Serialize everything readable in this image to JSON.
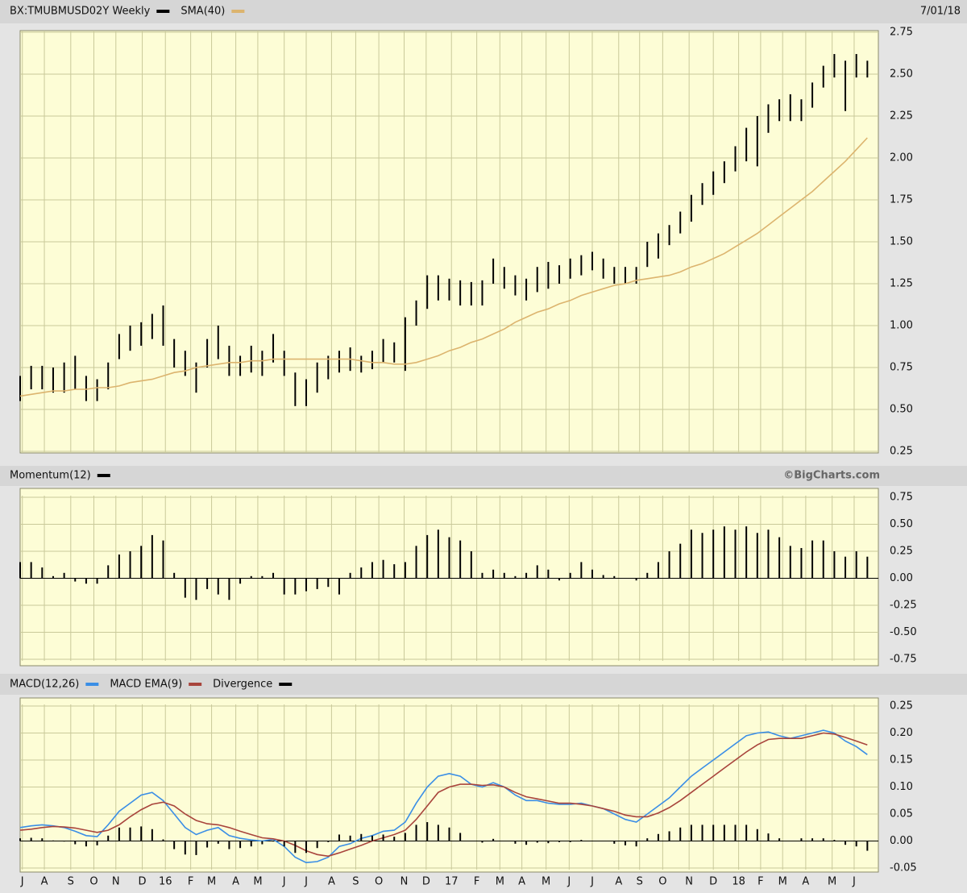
{
  "chart_data": [
    {
      "type": "ohlc",
      "date": "7/01/18",
      "xlim": [
        0,
        78
      ],
      "ylim": [
        0.25,
        2.75
      ],
      "yticks": [
        0.25,
        {
          "value": 0.5,
          "label": "0.50"
        },
        0.75,
        {
          "value": 1,
          "label": "1.00"
        },
        1.25,
        {
          "value": 1.5,
          "label": "1.50"
        },
        1.75,
        {
          "value": 2,
          "label": "2.00"
        },
        2.25,
        {
          "value": 2.5,
          "label": "2.50"
        },
        2.75
      ],
      "grid": true,
      "series": [
        {
          "name": "BX:TMUBMUSD02Y Weekly",
          "color": "#000000",
          "high": [
            0.7,
            0.76,
            0.76,
            0.75,
            0.78,
            0.82,
            0.7,
            0.68,
            0.78,
            0.95,
            1.0,
            1.02,
            1.07,
            1.12,
            0.92,
            0.85,
            0.78,
            0.92,
            1.0,
            0.88,
            0.82,
            0.88,
            0.85,
            0.95,
            0.85,
            0.72,
            0.68,
            0.78,
            0.82,
            0.85,
            0.87,
            0.82,
            0.85,
            0.92,
            0.9,
            1.05,
            1.15,
            1.3,
            1.3,
            1.28,
            1.27,
            1.26,
            1.27,
            1.4,
            1.35,
            1.3,
            1.28,
            1.35,
            1.38,
            1.36,
            1.4,
            1.42,
            1.44,
            1.4,
            1.35,
            1.35,
            1.35,
            1.5,
            1.55,
            1.6,
            1.68,
            1.78,
            1.85,
            1.92,
            1.98,
            2.07,
            2.18,
            2.25,
            2.32,
            2.35,
            2.38,
            2.35,
            2.45,
            2.55,
            2.62,
            2.58,
            2.62,
            2.58
          ],
          "low": [
            0.55,
            0.62,
            0.62,
            0.6,
            0.6,
            0.62,
            0.55,
            0.55,
            0.62,
            0.8,
            0.85,
            0.88,
            0.92,
            0.88,
            0.75,
            0.7,
            0.6,
            0.75,
            0.8,
            0.7,
            0.7,
            0.72,
            0.7,
            0.78,
            0.7,
            0.52,
            0.52,
            0.6,
            0.68,
            0.72,
            0.73,
            0.72,
            0.74,
            0.78,
            0.78,
            0.73,
            1.0,
            1.1,
            1.15,
            1.15,
            1.12,
            1.12,
            1.12,
            1.25,
            1.22,
            1.18,
            1.15,
            1.2,
            1.22,
            1.25,
            1.28,
            1.3,
            1.33,
            1.28,
            1.25,
            1.25,
            1.25,
            1.35,
            1.4,
            1.48,
            1.55,
            1.62,
            1.72,
            1.78,
            1.85,
            1.92,
            1.98,
            1.95,
            2.15,
            2.22,
            2.22,
            2.22,
            2.3,
            2.42,
            2.48,
            2.28,
            2.48,
            2.48
          ]
        },
        {
          "name": "SMA(40)",
          "color": "#dcb46e",
          "values": [
            0.58,
            0.59,
            0.6,
            0.61,
            0.61,
            0.62,
            0.62,
            0.63,
            0.63,
            0.64,
            0.66,
            0.67,
            0.68,
            0.7,
            0.72,
            0.73,
            0.75,
            0.76,
            0.77,
            0.78,
            0.78,
            0.79,
            0.79,
            0.8,
            0.8,
            0.8,
            0.8,
            0.8,
            0.8,
            0.8,
            0.8,
            0.79,
            0.78,
            0.78,
            0.77,
            0.77,
            0.78,
            0.8,
            0.82,
            0.85,
            0.87,
            0.9,
            0.92,
            0.95,
            0.98,
            1.02,
            1.05,
            1.08,
            1.1,
            1.13,
            1.15,
            1.18,
            1.2,
            1.22,
            1.24,
            1.25,
            1.27,
            1.28,
            1.29,
            1.3,
            1.32,
            1.35,
            1.37,
            1.4,
            1.43,
            1.47,
            1.51,
            1.55,
            1.6,
            1.65,
            1.7,
            1.75,
            1.8,
            1.86,
            1.92,
            1.98,
            2.05,
            2.12
          ]
        }
      ]
    },
    {
      "type": "bar",
      "credit": "©BigCharts.com",
      "xlim": [
        0,
        78
      ],
      "ylim": [
        -0.75,
        0.75
      ],
      "yticks": [
        -0.75,
        {
          "value": -0.5,
          "label": "-0.50"
        },
        -0.25,
        {
          "value": 0,
          "label": "0.00"
        },
        0.25,
        {
          "value": 0.5,
          "label": "0.50"
        },
        0.75
      ],
      "grid": true,
      "series": [
        {
          "name": "Momentum(12)",
          "color": "#000000",
          "values": [
            0.15,
            0.15,
            0.1,
            0.02,
            0.05,
            -0.03,
            -0.05,
            -0.05,
            0.12,
            0.22,
            0.25,
            0.3,
            0.4,
            0.35,
            0.05,
            -0.18,
            -0.2,
            -0.1,
            -0.15,
            -0.2,
            -0.05,
            0.02,
            0.02,
            0.05,
            -0.15,
            -0.15,
            -0.12,
            -0.1,
            -0.08,
            -0.15,
            0.05,
            0.1,
            0.15,
            0.17,
            0.13,
            0.15,
            0.3,
            0.4,
            0.45,
            0.38,
            0.35,
            0.25,
            0.05,
            0.08,
            0.05,
            0.02,
            0.05,
            0.12,
            0.08,
            -0.02,
            0.05,
            0.15,
            0.08,
            0.03,
            0.02,
            0.0,
            -0.02,
            0.05,
            0.15,
            0.25,
            0.32,
            0.45,
            0.42,
            0.45,
            0.48,
            0.45,
            0.48,
            0.42,
            0.45,
            0.38,
            0.3,
            0.28,
            0.35,
            0.35,
            0.25,
            0.2,
            0.25,
            0.2
          ]
        }
      ]
    },
    {
      "type": "line",
      "xlim": [
        0,
        78
      ],
      "ylim": [
        -0.05,
        0.25
      ],
      "yticks": [
        -0.05,
        {
          "value": 0,
          "label": "0.00"
        },
        0.05,
        {
          "value": 0.1,
          "label": "0.10"
        },
        0.15,
        {
          "value": 0.2,
          "label": "0.20"
        },
        0.25
      ],
      "xticks": [
        {
          "value": 0.2,
          "label": "J"
        },
        {
          "value": 2.2,
          "label": "A"
        },
        {
          "value": 4.6,
          "label": "S"
        },
        {
          "value": 6.7,
          "label": "O"
        },
        {
          "value": 8.7,
          "label": "N"
        },
        {
          "value": 11.1,
          "label": "D"
        },
        {
          "value": 13.2,
          "label": "16"
        },
        {
          "value": 15.5,
          "label": "F"
        },
        {
          "value": 17.4,
          "label": "M"
        },
        {
          "value": 19.6,
          "label": "A"
        },
        {
          "value": 21.6,
          "label": "M"
        },
        {
          "value": 24.0,
          "label": "J"
        },
        {
          "value": 26.0,
          "label": "J"
        },
        {
          "value": 28.3,
          "label": "A"
        },
        {
          "value": 30.5,
          "label": "S"
        },
        {
          "value": 32.6,
          "label": "O"
        },
        {
          "value": 34.9,
          "label": "N"
        },
        {
          "value": 36.9,
          "label": "D"
        },
        {
          "value": 39.2,
          "label": "17"
        },
        {
          "value": 41.5,
          "label": "F"
        },
        {
          "value": 43.6,
          "label": "M"
        },
        {
          "value": 45.6,
          "label": "A"
        },
        {
          "value": 47.8,
          "label": "M"
        },
        {
          "value": 49.9,
          "label": "J"
        },
        {
          "value": 52.0,
          "label": "J"
        },
        {
          "value": 54.4,
          "label": "A"
        },
        {
          "value": 56.3,
          "label": "S"
        },
        {
          "value": 58.4,
          "label": "O"
        },
        {
          "value": 60.8,
          "label": "N"
        },
        {
          "value": 63.0,
          "label": "D"
        },
        {
          "value": 65.3,
          "label": "18"
        },
        {
          "value": 67.3,
          "label": "F"
        },
        {
          "value": 69.3,
          "label": "M"
        },
        {
          "value": 71.4,
          "label": "A"
        },
        {
          "value": 73.8,
          "label": "M"
        },
        {
          "value": 75.8,
          "label": "J"
        }
      ],
      "grid": true,
      "series": [
        {
          "name": "MACD(12,26)",
          "color": "#3a8ee6",
          "values": [
            0.025,
            0.028,
            0.03,
            0.028,
            0.025,
            0.018,
            0.01,
            0.008,
            0.03,
            0.055,
            0.07,
            0.085,
            0.09,
            0.075,
            0.05,
            0.025,
            0.012,
            0.02,
            0.025,
            0.01,
            0.005,
            0.002,
            0.0,
            0.003,
            -0.01,
            -0.03,
            -0.04,
            -0.038,
            -0.03,
            -0.01,
            -0.005,
            0.005,
            0.01,
            0.018,
            0.02,
            0.035,
            0.07,
            0.1,
            0.12,
            0.125,
            0.12,
            0.105,
            0.1,
            0.108,
            0.1,
            0.085,
            0.075,
            0.075,
            0.07,
            0.068,
            0.068,
            0.07,
            0.065,
            0.06,
            0.05,
            0.04,
            0.035,
            0.05,
            0.065,
            0.08,
            0.1,
            0.12,
            0.135,
            0.15,
            0.165,
            0.18,
            0.195,
            0.2,
            0.202,
            0.195,
            0.19,
            0.195,
            0.2,
            0.205,
            0.2,
            0.185,
            0.175,
            0.16
          ]
        },
        {
          "name": "MACD EMA(9)",
          "color": "#a8443c",
          "values": [
            0.02,
            0.022,
            0.025,
            0.027,
            0.026,
            0.024,
            0.02,
            0.016,
            0.02,
            0.03,
            0.045,
            0.058,
            0.068,
            0.072,
            0.065,
            0.05,
            0.038,
            0.032,
            0.03,
            0.025,
            0.018,
            0.012,
            0.006,
            0.004,
            0.0,
            -0.008,
            -0.018,
            -0.025,
            -0.028,
            -0.022,
            -0.015,
            -0.008,
            0.0,
            0.006,
            0.012,
            0.02,
            0.04,
            0.065,
            0.09,
            0.1,
            0.105,
            0.105,
            0.103,
            0.104,
            0.1,
            0.09,
            0.082,
            0.078,
            0.074,
            0.07,
            0.07,
            0.068,
            0.065,
            0.06,
            0.055,
            0.048,
            0.045,
            0.045,
            0.052,
            0.062,
            0.075,
            0.09,
            0.105,
            0.12,
            0.135,
            0.15,
            0.165,
            0.178,
            0.188,
            0.19,
            0.19,
            0.19,
            0.195,
            0.2,
            0.198,
            0.192,
            0.185,
            0.178
          ]
        },
        {
          "name": "Divergence",
          "color": "#000000",
          "style": "bar",
          "values": [
            0.005,
            0.006,
            0.005,
            0.001,
            -0.001,
            -0.006,
            -0.01,
            -0.008,
            0.01,
            0.025,
            0.025,
            0.027,
            0.022,
            0.003,
            -0.015,
            -0.025,
            -0.026,
            -0.012,
            -0.005,
            -0.015,
            -0.013,
            -0.01,
            -0.006,
            -0.001,
            -0.01,
            -0.022,
            -0.022,
            -0.013,
            -0.002,
            0.012,
            0.01,
            0.013,
            0.01,
            0.012,
            0.008,
            0.015,
            0.03,
            0.035,
            0.03,
            0.025,
            0.015,
            0,
            -0.003,
            0.004,
            0,
            -0.005,
            -0.007,
            -0.003,
            -0.004,
            -0.002,
            -0.002,
            0.002,
            0,
            0,
            -0.005,
            -0.008,
            -0.01,
            0.005,
            0.013,
            0.018,
            0.025,
            0.03,
            0.03,
            0.03,
            0.03,
            0.03,
            0.03,
            0.022,
            0.014,
            0.005,
            0,
            0.005,
            0.005,
            0.005,
            0.002,
            -0.007,
            -0.01,
            -0.018
          ]
        }
      ]
    }
  ]
}
